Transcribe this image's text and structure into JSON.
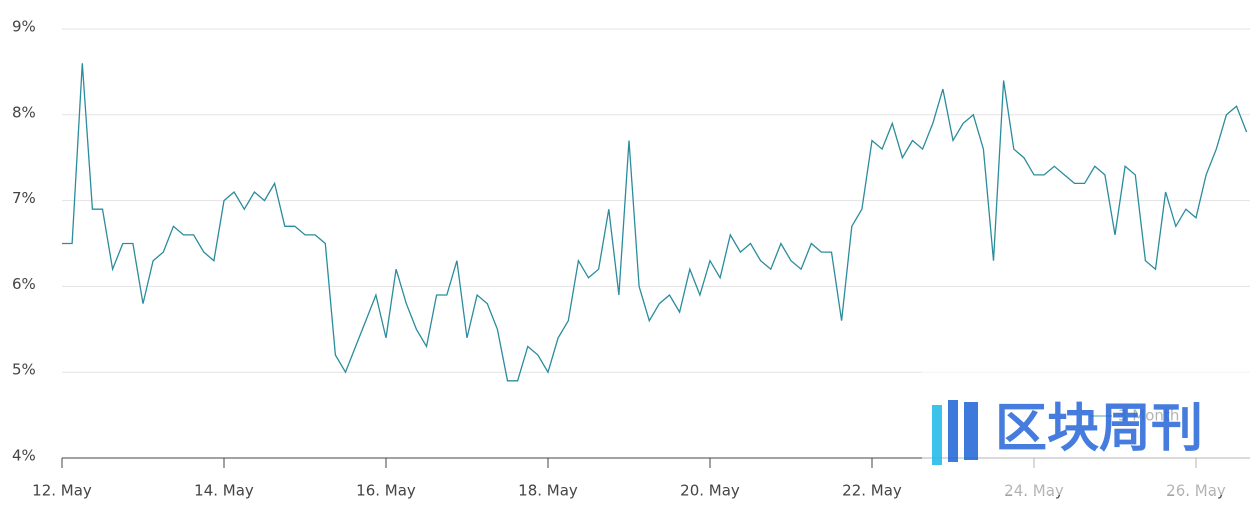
{
  "chart_data": {
    "type": "line",
    "x": [
      12,
      12.125,
      12.25,
      12.375,
      12.5,
      12.625,
      12.75,
      12.875,
      13,
      13.125,
      13.25,
      13.375,
      13.5,
      13.625,
      13.75,
      13.875,
      14,
      14.125,
      14.25,
      14.375,
      14.5,
      14.625,
      14.75,
      14.875,
      15,
      15.125,
      15.25,
      15.375,
      15.5,
      15.625,
      15.75,
      15.875,
      16,
      16.125,
      16.25,
      16.375,
      16.5,
      16.625,
      16.75,
      16.875,
      17,
      17.125,
      17.25,
      17.375,
      17.5,
      17.625,
      17.75,
      17.875,
      18,
      18.125,
      18.25,
      18.375,
      18.5,
      18.625,
      18.75,
      18.875,
      19,
      19.125,
      19.25,
      19.375,
      19.5,
      19.625,
      19.75,
      19.875,
      20,
      20.125,
      20.25,
      20.375,
      20.5,
      20.625,
      20.75,
      20.875,
      21,
      21.125,
      21.25,
      21.375,
      21.5,
      21.625,
      21.75,
      21.875,
      22,
      22.125,
      22.25,
      22.375,
      22.5,
      22.625,
      22.75,
      22.875,
      23,
      23.125,
      23.25,
      23.375,
      23.5,
      23.625,
      23.75,
      23.875,
      24,
      24.125,
      24.25,
      24.375,
      24.5,
      24.625,
      24.75,
      24.875,
      25,
      25.125,
      25.25,
      25.375,
      25.5,
      25.625,
      25.75,
      25.875,
      26,
      26.125,
      26.25,
      26.375,
      26.5,
      26.625
    ],
    "series": [
      {
        "name": "3 Month",
        "color": "#2a8c9c",
        "values": [
          6.5,
          6.5,
          8.6,
          6.9,
          6.9,
          6.2,
          6.5,
          6.5,
          5.8,
          6.3,
          6.4,
          6.7,
          6.6,
          6.6,
          6.4,
          6.3,
          7.0,
          7.1,
          6.9,
          7.1,
          7.0,
          7.2,
          6.7,
          6.7,
          6.6,
          6.6,
          6.5,
          5.2,
          5.0,
          5.3,
          5.6,
          5.9,
          5.4,
          6.2,
          5.8,
          5.5,
          5.3,
          5.9,
          5.9,
          6.3,
          5.4,
          5.9,
          5.8,
          5.5,
          4.9,
          4.9,
          5.3,
          5.2,
          5.0,
          5.4,
          5.6,
          6.3,
          6.1,
          6.2,
          6.9,
          5.9,
          7.7,
          6.0,
          5.6,
          5.8,
          5.9,
          5.7,
          6.2,
          5.9,
          6.3,
          6.1,
          6.6,
          6.4,
          6.5,
          6.3,
          6.2,
          6.5,
          6.3,
          6.2,
          6.5,
          6.4,
          6.4,
          5.6,
          6.7,
          6.9,
          7.7,
          7.6,
          7.9,
          7.5,
          7.7,
          7.6,
          7.9,
          8.3,
          7.7,
          7.9,
          8.0,
          7.6,
          6.3,
          8.4,
          7.6,
          7.5,
          7.3,
          7.3,
          7.4,
          7.3,
          7.2,
          7.2,
          7.4,
          7.3,
          6.6,
          7.4,
          7.3,
          6.3,
          6.2,
          7.1,
          6.7,
          6.9,
          6.8,
          7.3,
          7.6,
          8.0,
          8.1,
          7.8
        ]
      }
    ],
    "xlim": [
      12,
      26.65
    ],
    "xticks": [
      {
        "value": 12,
        "label": "12. May"
      },
      {
        "value": 14,
        "label": "14. May"
      },
      {
        "value": 16,
        "label": "16. May"
      },
      {
        "value": 18,
        "label": "18. May"
      },
      {
        "value": 20,
        "label": "20. May"
      },
      {
        "value": 22,
        "label": "22. May"
      },
      {
        "value": 24,
        "label": "24. May"
      },
      {
        "value": 26,
        "label": "26. May"
      }
    ],
    "ylim": [
      4,
      9
    ],
    "yticks": [
      {
        "value": 4,
        "label": "4%"
      },
      {
        "value": 5,
        "label": "5%"
      },
      {
        "value": 6,
        "label": "6%"
      },
      {
        "value": 7,
        "label": "7%"
      },
      {
        "value": 8,
        "label": "8%"
      },
      {
        "value": 9,
        "label": "9%"
      }
    ],
    "grid": true,
    "legend": "lower right",
    "watermark": "区块周刊"
  }
}
